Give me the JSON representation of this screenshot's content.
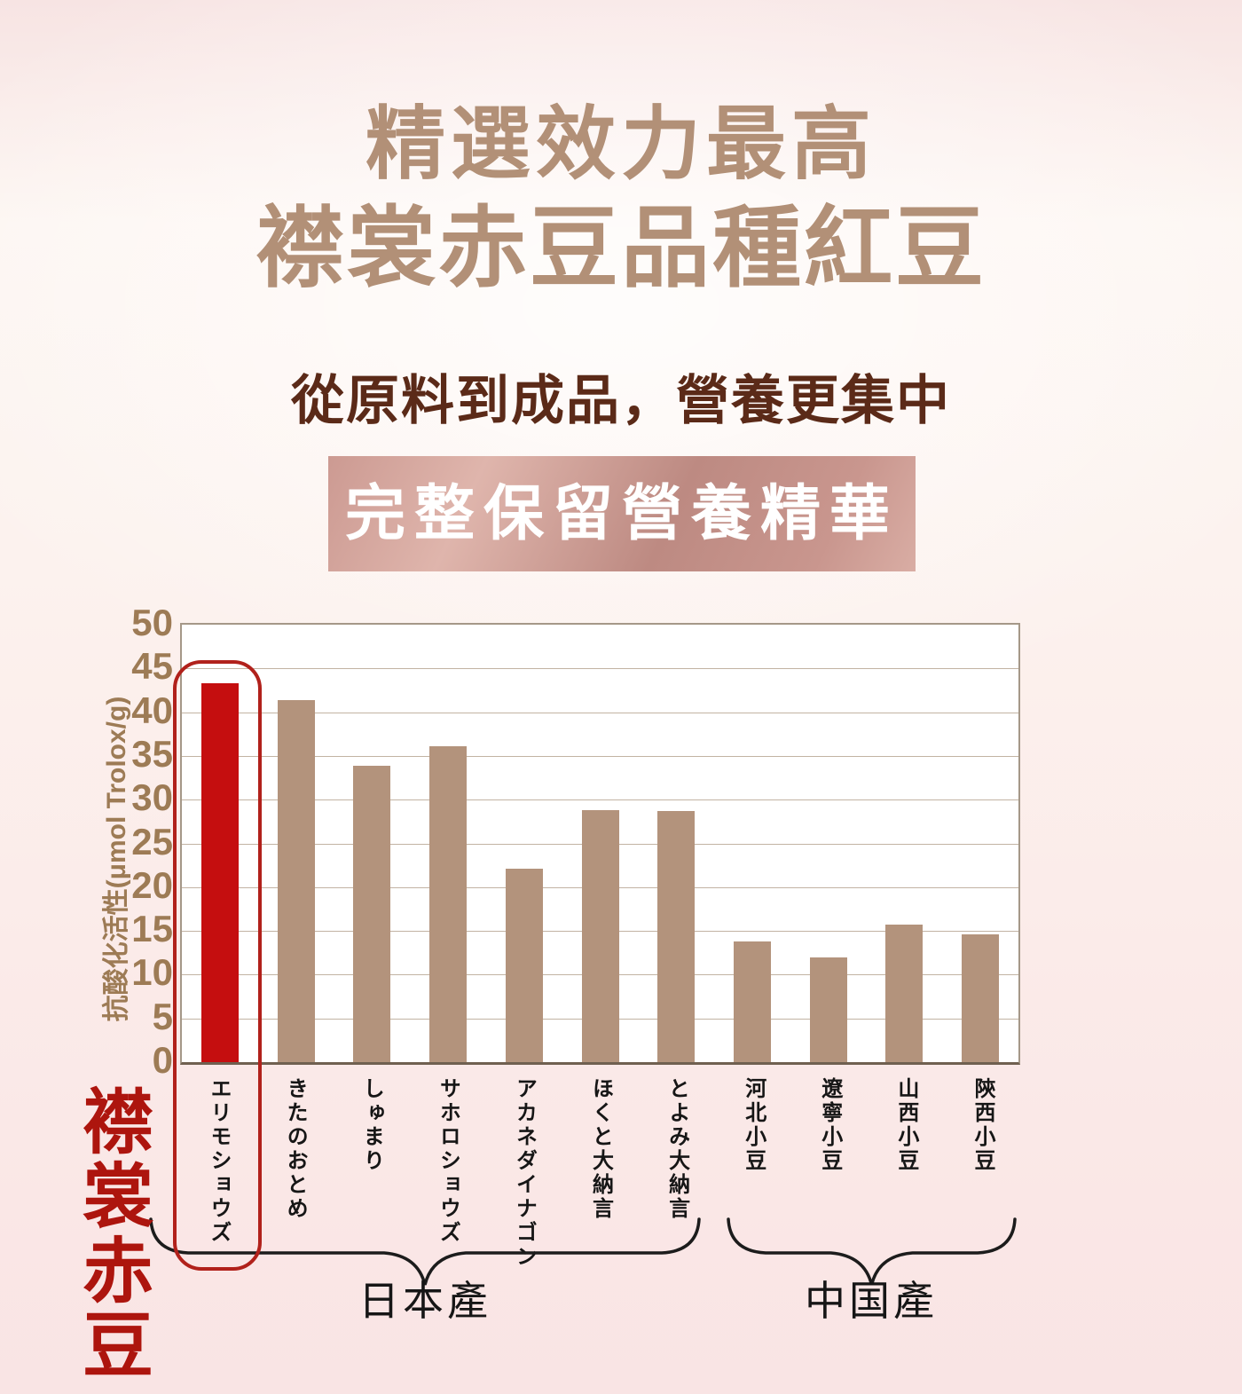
{
  "page": {
    "title_line1": "精選效力最高",
    "title_line2": "襟裳赤豆品種紅豆",
    "subtitle": "從原料到成品，營養更集中",
    "banner": "完整保留營養精華"
  },
  "chart_data": {
    "type": "bar",
    "title": "",
    "xlabel": "",
    "ylabel": "抗酸化活性(μmol Trolox/g)",
    "ylim": [
      0,
      50
    ],
    "yticks": [
      50,
      45,
      40,
      35,
      30,
      25,
      20,
      15,
      10,
      5,
      0
    ],
    "grid": "horizontal",
    "categories": [
      "エリモショウズ",
      "きたのおとめ",
      "しゅまり",
      "サホロショウズ",
      "アカネダイナゴン",
      "ほくと大納言",
      "とよみ大納言",
      "河北小豆",
      "遼寧小豆",
      "山西小豆",
      "陝西小豆"
    ],
    "values": [
      43.3,
      41.4,
      33.9,
      36.1,
      22.1,
      28.8,
      28.7,
      13.8,
      12.0,
      15.7,
      14.6
    ],
    "highlight_index": 0,
    "highlight_label": "襟裳赤豆",
    "groups": [
      {
        "label": "日本產",
        "from": 0,
        "to": 6
      },
      {
        "label": "中国產",
        "from": 7,
        "to": 10
      }
    ],
    "colors": {
      "bar": "#b3937c",
      "highlight_bar": "#c50e0f",
      "highlight_outline": "#b1211b",
      "tick_text": "#9d7b55",
      "title_text": "#b29077",
      "subtitle_text": "#5b2a18",
      "banner_text": "#ffffff"
    }
  }
}
